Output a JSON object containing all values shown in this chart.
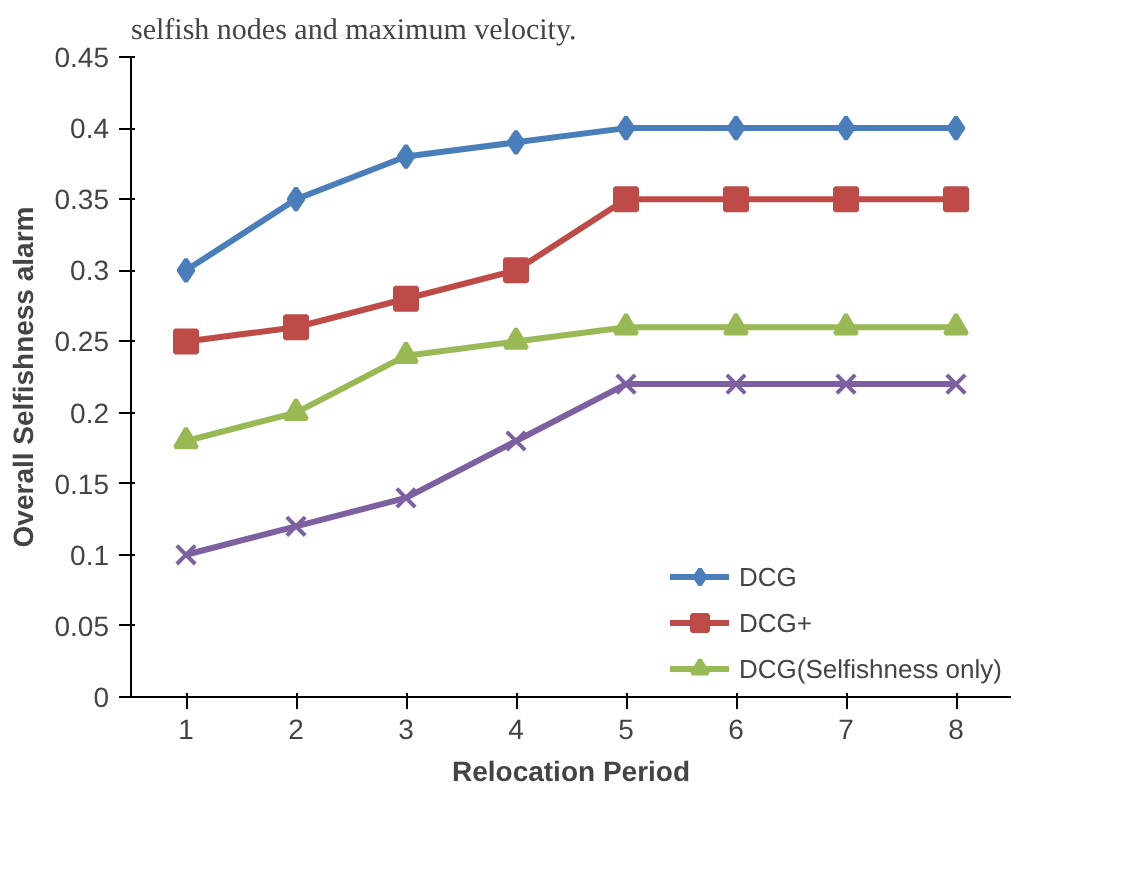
{
  "chart_data": {
    "type": "line",
    "title": "selfish nodes and maximum velocity.",
    "xlabel": "Relocation Period",
    "ylabel": "Overall Selfishness alarm",
    "categories": [
      "1",
      "2",
      "3",
      "4",
      "5",
      "6",
      "7",
      "8"
    ],
    "series": [
      {
        "name": "DCG",
        "color": "#4a7ebb",
        "marker": "diamond",
        "values": [
          0.3,
          0.35,
          0.38,
          0.39,
          0.4,
          0.4,
          0.4,
          0.4
        ]
      },
      {
        "name": "DCG+",
        "color": "#be4b48",
        "marker": "square",
        "values": [
          0.25,
          0.26,
          0.28,
          0.3,
          0.35,
          0.35,
          0.35,
          0.35
        ]
      },
      {
        "name": "DCG(Selfishness only)",
        "color": "#98b954",
        "marker": "triangle",
        "values": [
          0.18,
          0.2,
          0.24,
          0.25,
          0.26,
          0.26,
          0.26,
          0.26
        ]
      },
      {
        "color": "#7d60a0",
        "marker": "cross",
        "values": [
          0.1,
          0.12,
          0.14,
          0.18,
          0.22,
          0.22,
          0.22,
          0.22
        ]
      }
    ],
    "ylim": [
      0,
      0.45
    ],
    "yticks": [
      0,
      0.05,
      0.1,
      0.15,
      0.2,
      0.25,
      0.3,
      0.35,
      0.4,
      0.45
    ],
    "grid": false,
    "legend": "bottom right",
    "line_style": "solid"
  }
}
